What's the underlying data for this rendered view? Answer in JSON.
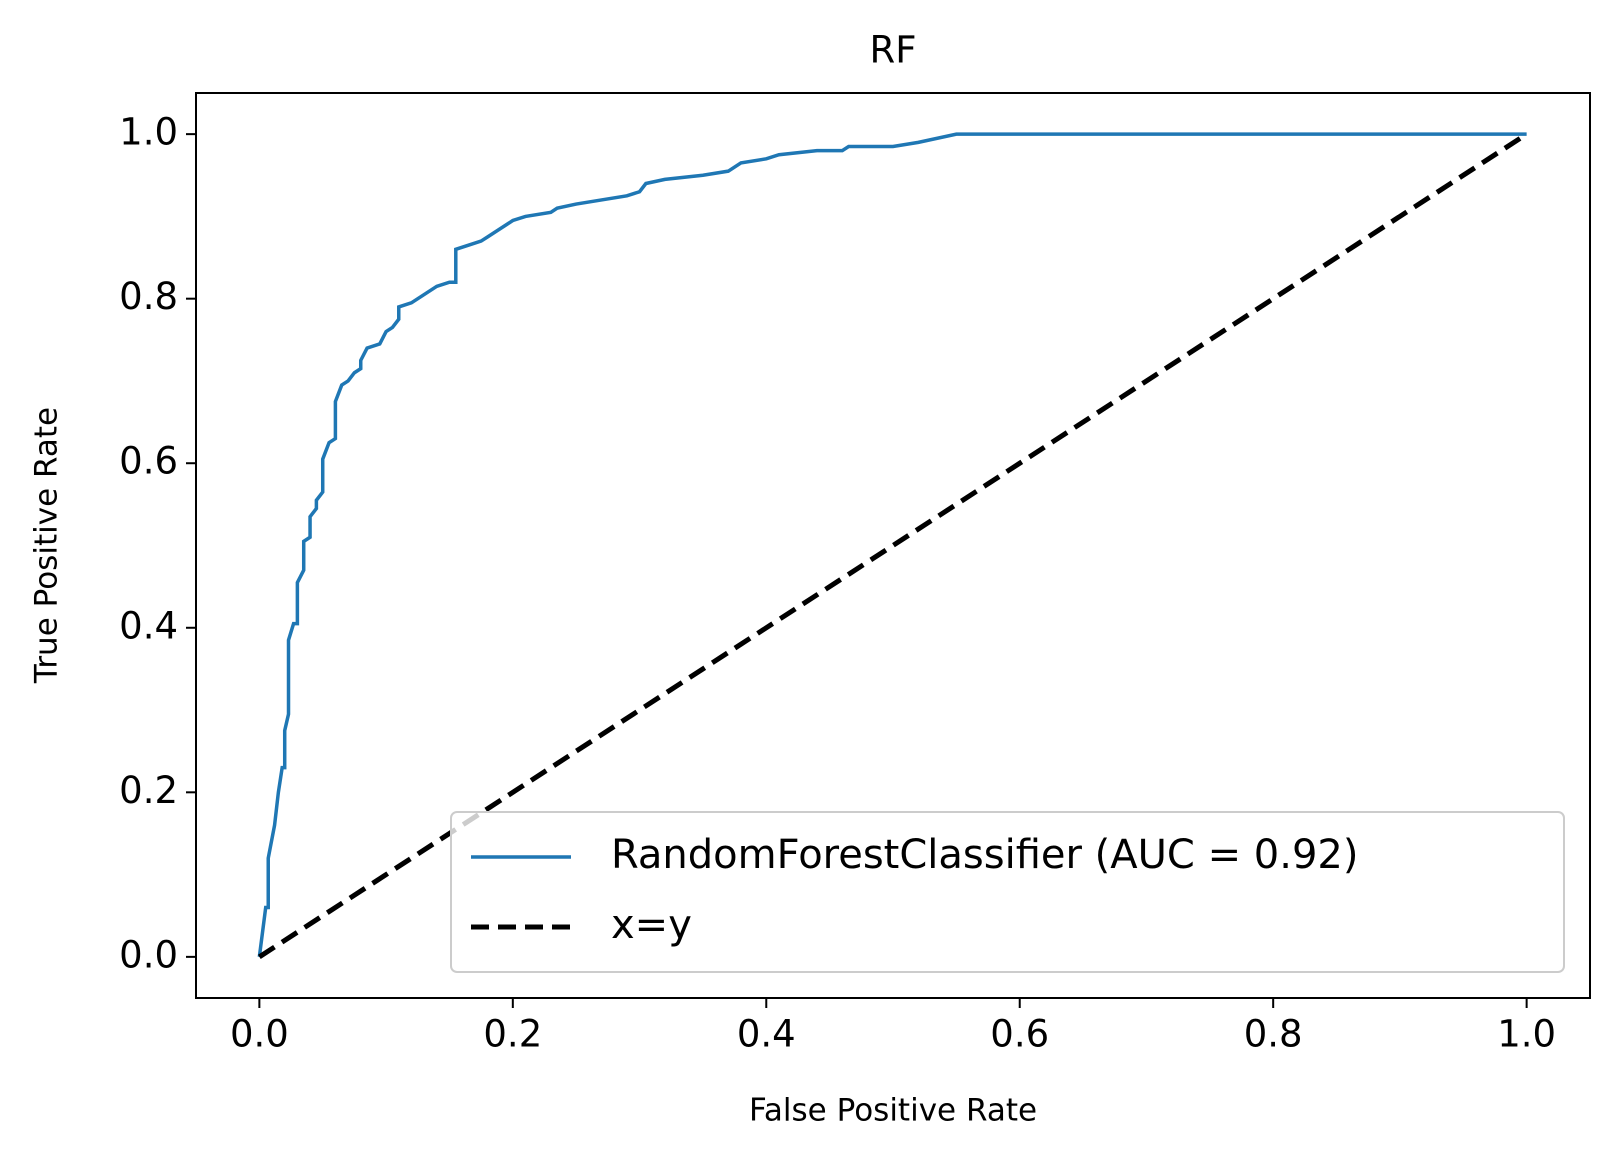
{
  "chart_data": {
    "type": "line",
    "title": "RF",
    "x_label": "False Positive Rate",
    "y_label": "True Positive Rate",
    "xlim": [
      -0.05,
      1.05
    ],
    "ylim": [
      -0.05,
      1.05
    ],
    "xticks": [
      {
        "value": 0,
        "label": "0.0"
      },
      0.2,
      0.4,
      0.6,
      0.8,
      {
        "value": 1,
        "label": "1.0"
      }
    ],
    "yticks": [
      {
        "value": 0,
        "label": "0.0"
      },
      0.2,
      0.4,
      0.6,
      0.8,
      {
        "value": 1,
        "label": "1.0"
      }
    ],
    "legend": "lower right",
    "series": [
      {
        "name": "RandomForestClassifier (AUC = 0.92)",
        "color": "#1f77b4",
        "dashed": false,
        "x": [
          0,
          0.005,
          0.007,
          0.007,
          0.012,
          0.015,
          0.018,
          0.02,
          0.02,
          0.023,
          0.023,
          0.027,
          0.03,
          0.03,
          0.035,
          0.035,
          0.04,
          0.04,
          0.045,
          0.045,
          0.05,
          0.05,
          0.055,
          0.06,
          0.06,
          0.065,
          0.07,
          0.075,
          0.08,
          0.08,
          0.085,
          0.095,
          0.1,
          0.105,
          0.11,
          0.11,
          0.12,
          0.125,
          0.13,
          0.135,
          0.14,
          0.15,
          0.155,
          0.155,
          0.165,
          0.175,
          0.18,
          0.19,
          0.2,
          0.21,
          0.23,
          0.235,
          0.25,
          0.27,
          0.29,
          0.3,
          0.305,
          0.32,
          0.35,
          0.37,
          0.38,
          0.4,
          0.41,
          0.44,
          0.46,
          0.465,
          0.5,
          0.52,
          0.55,
          0.75,
          0.8,
          1
        ],
        "values": [
          0,
          0.06,
          0.06,
          0.12,
          0.16,
          0.2,
          0.23,
          0.23,
          0.275,
          0.295,
          0.385,
          0.405,
          0.405,
          0.455,
          0.47,
          0.505,
          0.51,
          0.535,
          0.545,
          0.555,
          0.565,
          0.605,
          0.625,
          0.63,
          0.675,
          0.695,
          0.7,
          0.71,
          0.715,
          0.725,
          0.74,
          0.745,
          0.76,
          0.765,
          0.775,
          0.79,
          0.795,
          0.8,
          0.805,
          0.81,
          0.815,
          0.82,
          0.82,
          0.86,
          0.865,
          0.87,
          0.875,
          0.885,
          0.895,
          0.9,
          0.905,
          0.91,
          0.915,
          0.92,
          0.925,
          0.93,
          0.94,
          0.945,
          0.95,
          0.955,
          0.965,
          0.97,
          0.975,
          0.98,
          0.98,
          0.985,
          0.985,
          0.99,
          1,
          1,
          1,
          1
        ]
      },
      {
        "name": "x=y",
        "color": "#000000",
        "dashed": true,
        "x": [
          0,
          1
        ],
        "values": [
          0,
          1
        ]
      }
    ]
  }
}
